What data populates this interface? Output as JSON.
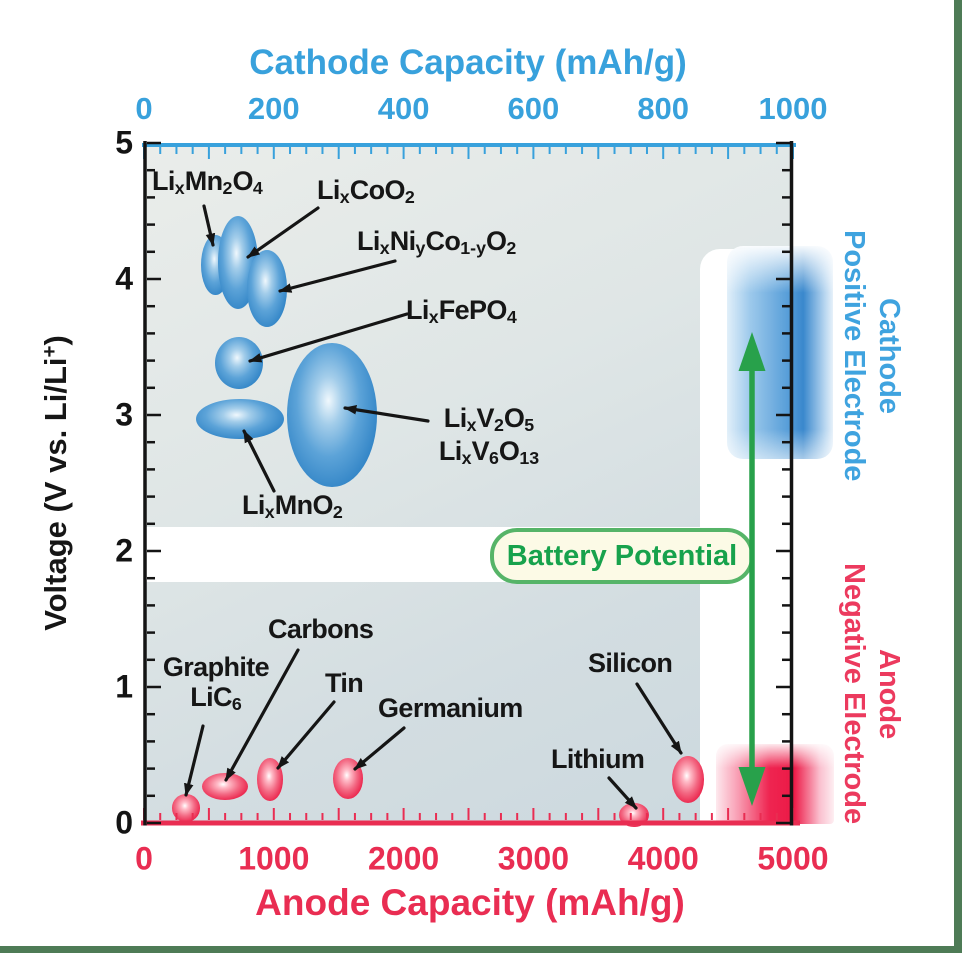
{
  "frame": {
    "border_color": "#4e7b56",
    "background": "#ffffff"
  },
  "chart_data": {
    "type": "scatter",
    "title_top": "Cathode Capacity (mAh/g)",
    "title_bottom": "Anode Capacity (mAh/g)",
    "ylabel": "Voltage (V vs. Li/Li^+^)",
    "grid": false,
    "legend_position": "none",
    "axes": {
      "top": {
        "label": "Cathode Capacity (mAh/g)",
        "min": 0,
        "max": 1000,
        "minor_step": 25,
        "major_step": 100,
        "tick_labels": [
          0,
          200,
          400,
          600,
          800,
          1000
        ],
        "color": "#38a1dc"
      },
      "bottom": {
        "label": "Anode Capacity (mAh/g)",
        "min": 0,
        "max": 5000,
        "minor_step": 125,
        "major_step": 500,
        "tick_labels": [
          0,
          1000,
          2000,
          3000,
          4000,
          5000
        ],
        "color": "#e92d52"
      },
      "left": {
        "label": "Voltage (V vs. Li/Li+)",
        "min": 0,
        "max": 5,
        "minor_step": 0.2,
        "major_step": 1,
        "tick_labels": [
          5,
          4,
          3,
          2,
          1,
          0
        ],
        "color": "#141414"
      },
      "right": {
        "min": 0,
        "max": 5,
        "minor_step": 0.2,
        "major_step": 1,
        "tick_labels": [],
        "color": "#141414"
      }
    },
    "cathode_materials": [
      {
        "label": "Li~x~Mn~2~O~4~",
        "capacity_mAh_g": 110,
        "voltage_V": 4.1,
        "cap_spread": 22,
        "v_spread": 0.22
      },
      {
        "label": "Li~x~CoO~2~",
        "capacity_mAh_g": 145,
        "voltage_V": 4.12,
        "cap_spread": 31,
        "v_spread": 0.34
      },
      {
        "label": "Li~x~Ni~y~Co~1-y~O~2~",
        "capacity_mAh_g": 190,
        "voltage_V": 3.93,
        "cap_spread": 31,
        "v_spread": 0.28
      },
      {
        "label": "Li~x~FePO~4~",
        "capacity_mAh_g": 147,
        "voltage_V": 3.38,
        "cap_spread": 37,
        "v_spread": 0.19
      },
      {
        "label": "Li~x~MnO~2~",
        "capacity_mAh_g": 148,
        "voltage_V": 2.97,
        "cap_spread": 68,
        "v_spread": 0.15
      },
      {
        "label": "Li~x~V~2~O~5~",
        "label2": "Li~x~V~6~O~13~",
        "capacity_mAh_g": 290,
        "voltage_V": 3.0,
        "cap_spread": 69,
        "v_spread": 0.53
      }
    ],
    "anode_materials": [
      {
        "label": "Graphite",
        "label2": "LiC~6~",
        "capacity_mAh_g": 325,
        "voltage_V": 0.11,
        "cap_spread": 108,
        "v_spread": 0.1
      },
      {
        "label": "Carbons",
        "capacity_mAh_g": 625,
        "voltage_V": 0.27,
        "cap_spread": 177,
        "v_spread": 0.1
      },
      {
        "label": "Tin",
        "capacity_mAh_g": 970,
        "voltage_V": 0.32,
        "cap_spread": 100,
        "v_spread": 0.16
      },
      {
        "label": "Germanium",
        "capacity_mAh_g": 1575,
        "voltage_V": 0.33,
        "cap_spread": 116,
        "v_spread": 0.15
      },
      {
        "label": "Lithium",
        "capacity_mAh_g": 3775,
        "voltage_V": 0.06,
        "cap_spread": 116,
        "v_spread": 0.09
      },
      {
        "label": "Silicon",
        "capacity_mAh_g": 4190,
        "voltage_V": 0.32,
        "cap_spread": 123,
        "v_spread": 0.17
      }
    ],
    "annotations": {
      "battery_potential": "Battery Potential",
      "cathode_side_line1": "Cathode",
      "cathode_side_line2": "Positive Electrode",
      "anode_side_line1": "Anode",
      "anode_side_line2": "Negative Electrode"
    },
    "colors": {
      "cathode_blue": "#38a1dc",
      "anode_red": "#e92d52",
      "arrow_green": "#28a14b",
      "battery_box_border": "#56b468",
      "battery_box_text": "#17a24c",
      "battery_box_bg": "#fcfae6",
      "frame_green": "#4e7b56"
    }
  }
}
